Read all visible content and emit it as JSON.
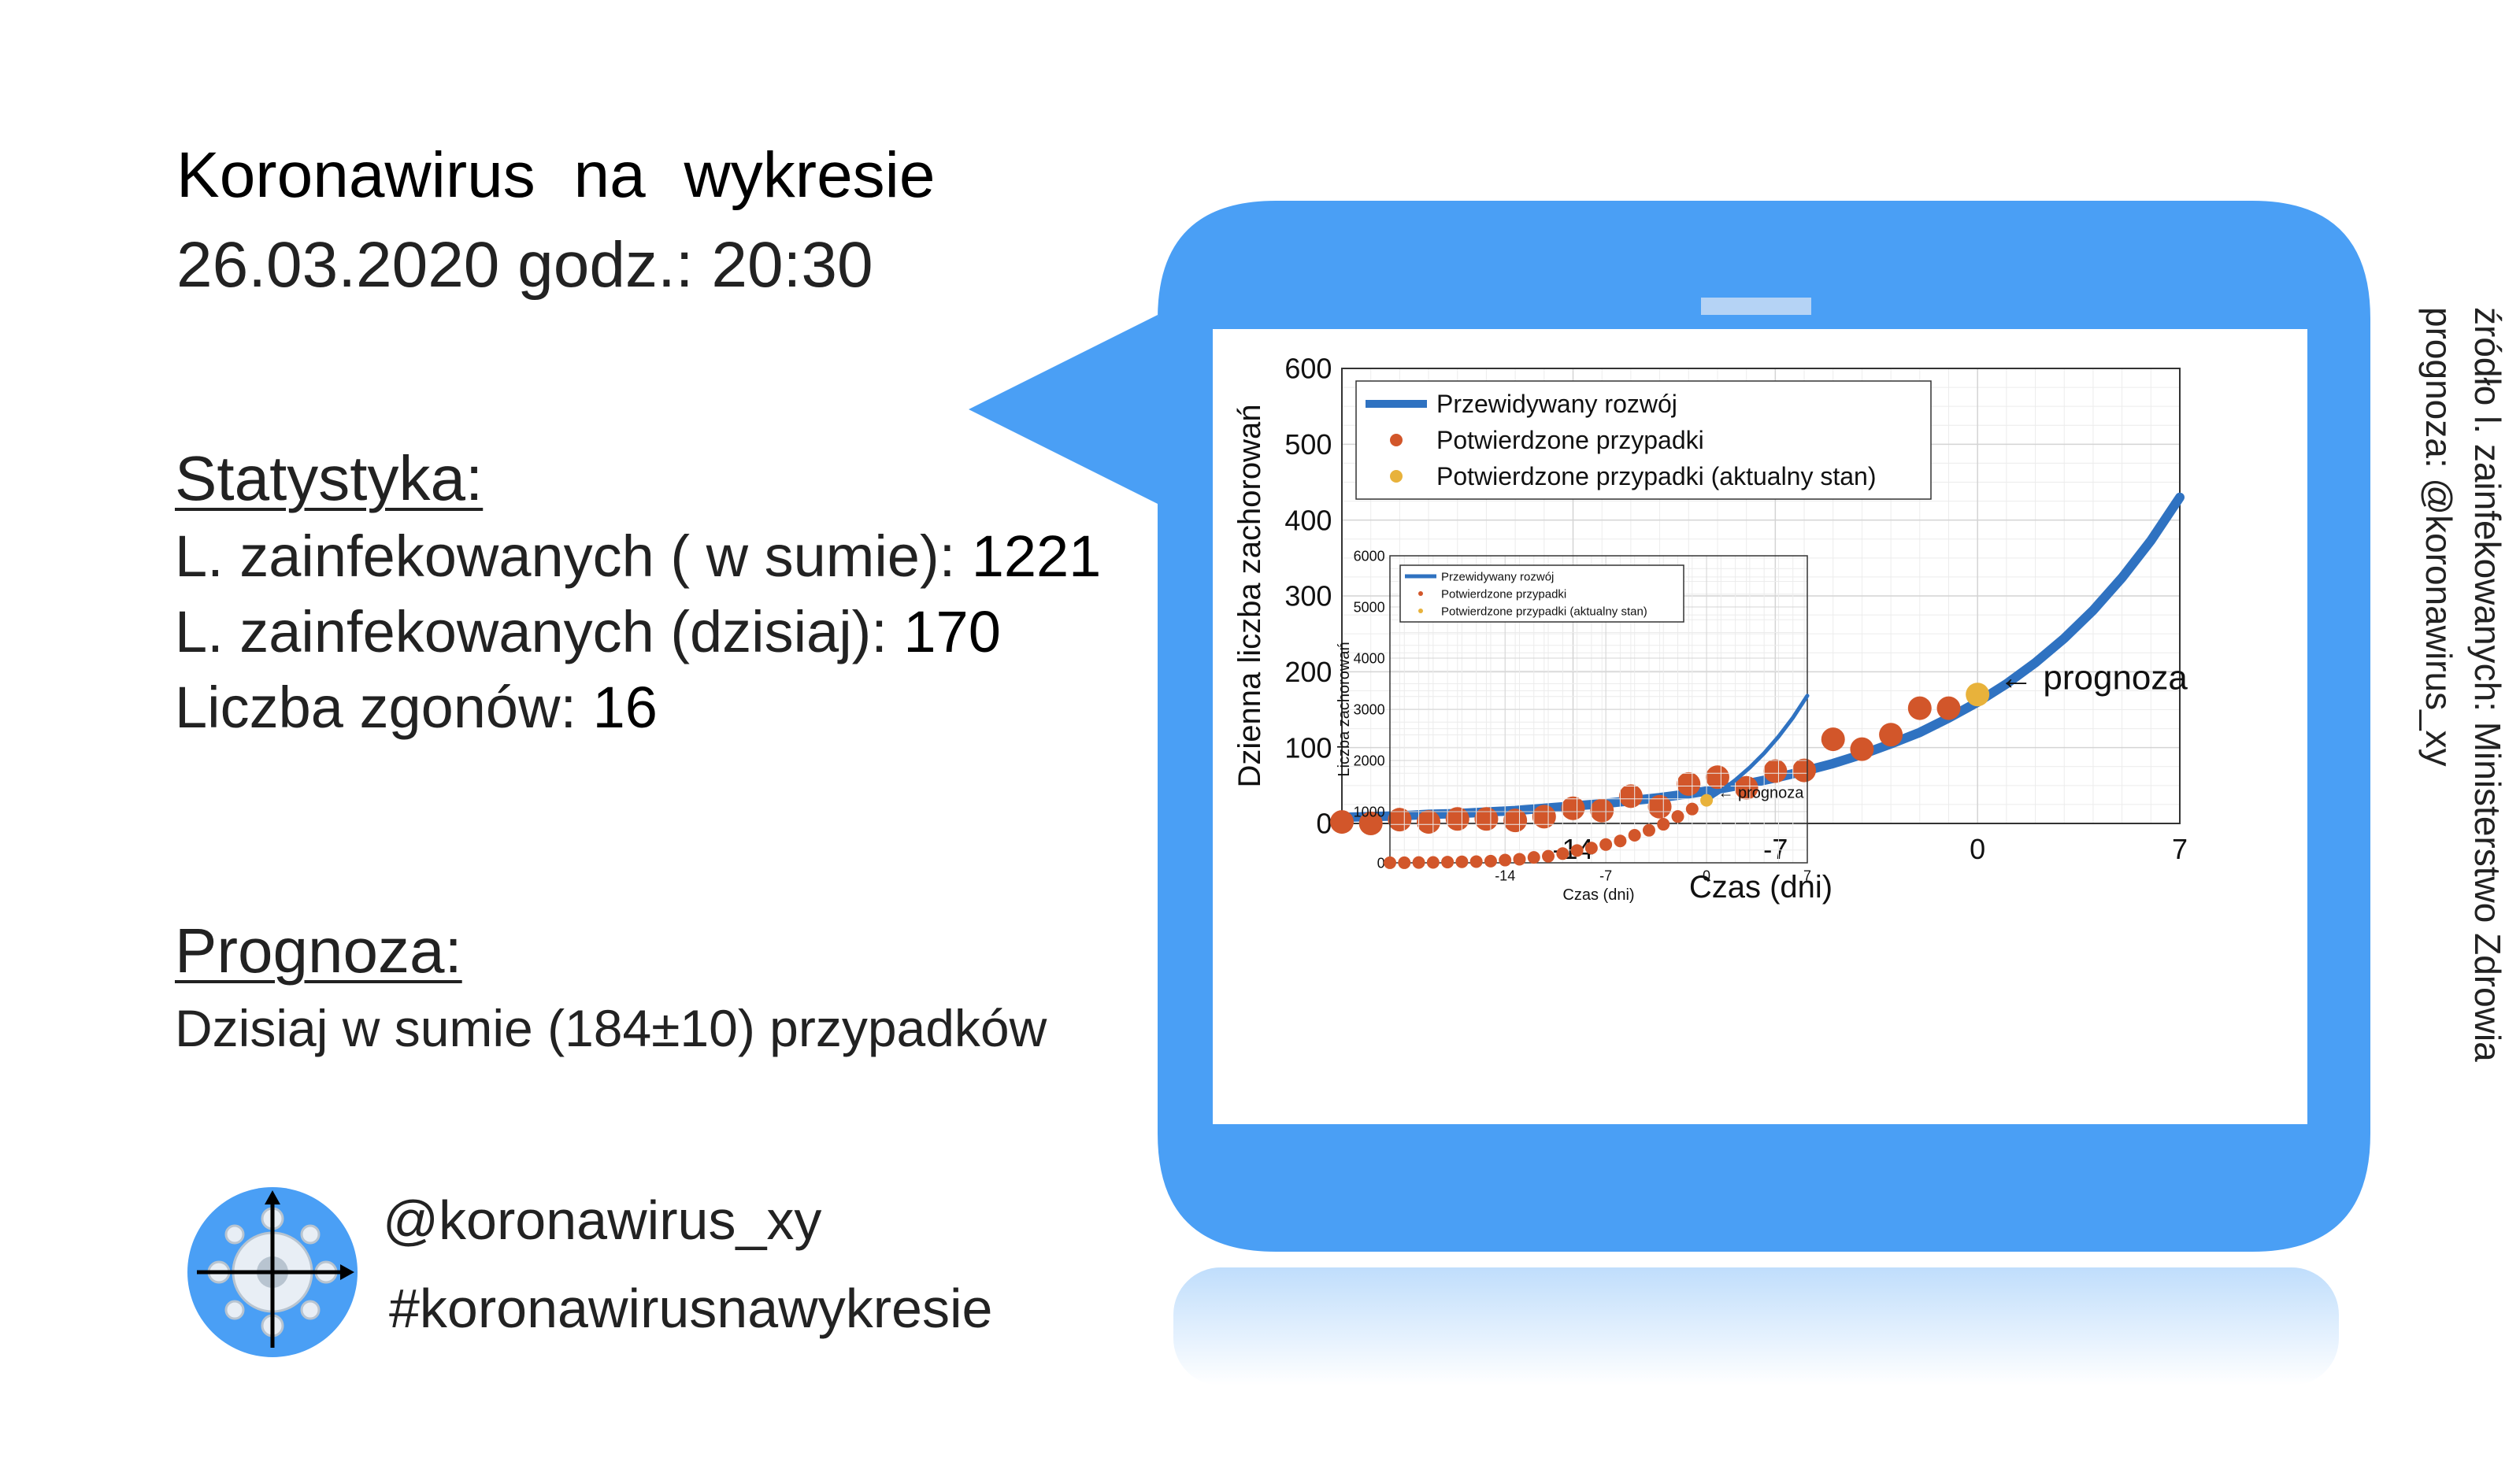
{
  "header": {
    "title": "Koronawirus na wykresie",
    "date": "26.03.2020 godz.: 20:30"
  },
  "stats": {
    "heading": "Statystyka:",
    "items": [
      {
        "label": "L. zainfekowanych ( w sumie): ",
        "value": "1221"
      },
      {
        "label": "L. zainfekowanych (dzisiaj): ",
        "value": "170"
      },
      {
        "label": "Liczba zgonów: ",
        "value": "16"
      }
    ]
  },
  "forecast": {
    "heading": "Prognoza:",
    "text": "Dzisiaj w sumie (184±10) przypadków"
  },
  "social": {
    "handle": "@koronawirus_xy",
    "hashtag": "#koronawirusnawykresie"
  },
  "source": {
    "line1": "źródło l. zainfekowanych: Ministerstwo Zdrowia",
    "line2": "prognoza: @koronawirus_xy"
  },
  "colors": {
    "bubble": "#4a9ff5",
    "curve": "#2f72c1",
    "points": "#d2562a",
    "current": "#e8b23b"
  },
  "chart_data": [
    {
      "type": "scatter",
      "xlabel": "Czas (dni)",
      "ylabel": "Dzienna liczba zachorowań",
      "xlim": [
        -22,
        7
      ],
      "ylim": [
        0,
        600
      ],
      "xticks": [
        -14,
        -7,
        0,
        7
      ],
      "yticks": [
        0,
        100,
        200,
        300,
        400,
        500,
        600
      ],
      "grid": true,
      "legend_position": "top-left",
      "annotation": "← prognoza",
      "series": [
        {
          "name": "Przewidywany rozwój",
          "kind": "line",
          "x": [
            -22,
            -21,
            -20,
            -19,
            -18,
            -17,
            -16,
            -15,
            -14,
            -13,
            -12,
            -11,
            -10,
            -9,
            -8,
            -7,
            -6,
            -5,
            -4,
            -3,
            -2,
            -1,
            0,
            1,
            2,
            3,
            4,
            5,
            6,
            7
          ],
          "y": [
            8,
            9,
            10,
            12,
            13,
            15,
            17,
            20,
            23,
            26,
            30,
            34,
            39,
            45,
            52,
            60,
            69,
            79,
            91,
            105,
            120,
            139,
            160,
            184,
            212,
            244,
            281,
            324,
            373,
            430
          ]
        },
        {
          "name": "Potwierdzone przypadki",
          "kind": "points",
          "x": [
            -22,
            -21,
            -20,
            -19,
            -18,
            -17,
            -16,
            -15,
            -14,
            -13,
            -12,
            -11,
            -10,
            -9,
            -8,
            -7,
            -6,
            -5,
            -4,
            -3,
            -2,
            -1
          ],
          "y": [
            2,
            0,
            5,
            2,
            6,
            6,
            4,
            9,
            20,
            17,
            36,
            22,
            52,
            61,
            47,
            69,
            70,
            111,
            98,
            117,
            152,
            152
          ]
        },
        {
          "name": "Potwierdzone przypadki (aktualny stan)",
          "kind": "points",
          "x": [
            0
          ],
          "y": [
            170
          ]
        }
      ]
    },
    {
      "type": "scatter",
      "xlabel": "Czas (dni)",
      "ylabel": "Liczba zachorowań",
      "xlim": [
        -22,
        7
      ],
      "ylim": [
        0,
        6000
      ],
      "xticks": [
        -14,
        -7,
        0,
        7
      ],
      "yticks": [
        0,
        1000,
        2000,
        3000,
        4000,
        5000,
        6000
      ],
      "grid": true,
      "legend_position": "top-left",
      "annotation": "← prognoza",
      "series": [
        {
          "name": "Przewidywany rozwój",
          "kind": "line",
          "x": [
            0,
            1,
            2,
            3,
            4,
            5,
            6,
            7
          ],
          "y": [
            1221,
            1405,
            1617,
            1861,
            2141,
            2464,
            2836,
            3264
          ]
        },
        {
          "name": "Potwierdzone przypadki",
          "kind": "points",
          "x": [
            -22,
            -21,
            -20,
            -19,
            -18,
            -17,
            -16,
            -15,
            -14,
            -13,
            -12,
            -11,
            -10,
            -9,
            -8,
            -7,
            -6,
            -5,
            -4,
            -3,
            -2,
            -1
          ],
          "y": [
            1,
            1,
            6,
            8,
            14,
            20,
            24,
            33,
            53,
            70,
            106,
            128,
            180,
            241,
            288,
            357,
            427,
            538,
            636,
            753,
            905,
            1051
          ]
        },
        {
          "name": "Potwierdzone przypadki (aktualny stan)",
          "kind": "points",
          "x": [
            0
          ],
          "y": [
            1221
          ]
        }
      ]
    }
  ]
}
